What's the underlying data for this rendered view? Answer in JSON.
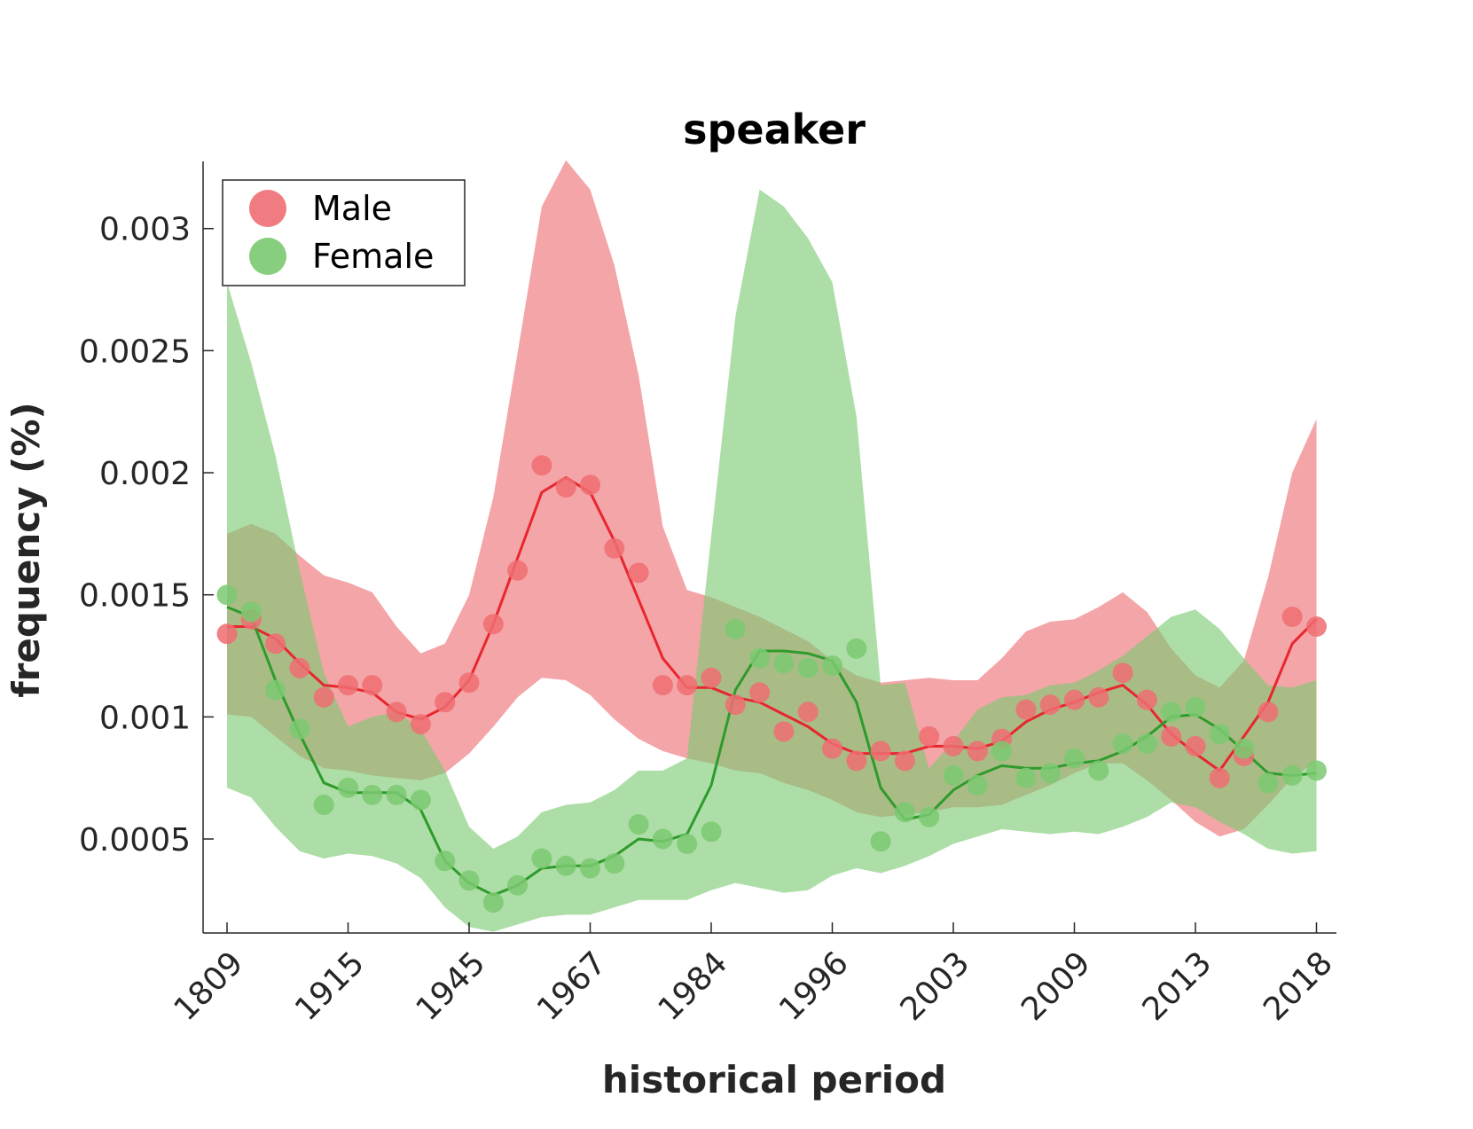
{
  "chart_data": {
    "type": "line",
    "title": "speaker",
    "xlabel": "historical period",
    "ylabel": "frequency (%)",
    "xtick_labels": [
      "1809",
      "1915",
      "1945",
      "1967",
      "1984",
      "1996",
      "2003",
      "2009",
      "2013",
      "2018"
    ],
    "xtick_positions": [
      0,
      5,
      10,
      15,
      20,
      25,
      30,
      35,
      40,
      45
    ],
    "x_index_range": [
      -1,
      46
    ],
    "ylim": [
      0.000115,
      0.003275
    ],
    "yticks": [
      0.0005,
      0.001,
      0.0015,
      0.002,
      0.0025,
      0.003
    ],
    "ytick_labels": [
      "0.0005",
      "0.001",
      "0.0015",
      "0.002",
      "0.0025",
      "0.003"
    ],
    "grid": false,
    "legend_position": "top-left",
    "series": [
      {
        "name": "Male",
        "color": "#e8262e",
        "band_color": "#ee6d72",
        "points": [
          0.00134,
          0.0014,
          0.0013,
          0.0012,
          0.00108,
          0.00113,
          0.00113,
          0.00102,
          0.00097,
          0.00106,
          0.00114,
          0.00138,
          0.0016,
          0.00203,
          0.00194,
          0.00195,
          0.00169,
          0.00159,
          0.00113,
          0.00113,
          0.00116,
          0.00105,
          0.0011,
          0.00094,
          0.00102,
          0.00087,
          0.00082,
          0.00086,
          0.00082,
          0.00092,
          0.00088,
          0.00086,
          0.00091,
          0.00103,
          0.00105,
          0.00107,
          0.00108,
          0.00118,
          0.00107,
          0.00092,
          0.00088,
          0.00075,
          0.00084,
          0.00102,
          0.00141,
          0.00137
        ],
        "line": [
          0.00137,
          0.00137,
          0.00132,
          0.00122,
          0.00113,
          0.00112,
          0.0011,
          0.00102,
          0.00099,
          0.00104,
          0.00115,
          0.00138,
          0.00165,
          0.00192,
          0.00198,
          0.00192,
          0.00172,
          0.00148,
          0.00124,
          0.00112,
          0.00112,
          0.00108,
          0.00106,
          0.00101,
          0.00096,
          0.00089,
          0.00085,
          0.00085,
          0.00085,
          0.00088,
          0.00088,
          0.00087,
          0.0009,
          0.00098,
          0.00103,
          0.00106,
          0.0011,
          0.00113,
          0.00105,
          0.00093,
          0.00085,
          0.00078,
          0.00092,
          0.00106,
          0.0013,
          0.0014
        ],
        "band_upper": [
          0.00175,
          0.00179,
          0.00175,
          0.00166,
          0.00158,
          0.00155,
          0.00151,
          0.00137,
          0.00126,
          0.0013,
          0.0015,
          0.0019,
          0.00249,
          0.00309,
          0.00328,
          0.00316,
          0.00285,
          0.0024,
          0.00178,
          0.00152,
          0.00149,
          0.00145,
          0.00141,
          0.00136,
          0.00131,
          0.00123,
          0.00117,
          0.00114,
          0.00115,
          0.00116,
          0.00115,
          0.00115,
          0.00124,
          0.00135,
          0.00139,
          0.0014,
          0.00145,
          0.00151,
          0.00143,
          0.00128,
          0.00117,
          0.00112,
          0.00123,
          0.00157,
          0.002,
          0.00222
        ],
        "band_lower": [
          0.00101,
          0.001,
          0.00092,
          0.00084,
          0.00079,
          0.00078,
          0.00076,
          0.00075,
          0.00074,
          0.00077,
          0.00085,
          0.00096,
          0.00108,
          0.00116,
          0.00115,
          0.00109,
          0.00099,
          0.00091,
          0.00086,
          0.00083,
          0.00081,
          0.00078,
          0.00077,
          0.00073,
          0.0007,
          0.00066,
          0.00061,
          0.00059,
          0.0006,
          0.00061,
          0.00063,
          0.00063,
          0.00064,
          0.00068,
          0.00072,
          0.00077,
          0.00081,
          0.00081,
          0.00074,
          0.00066,
          0.00057,
          0.00051,
          0.00054,
          0.00064,
          0.00075,
          0.00082
        ]
      },
      {
        "name": "Female",
        "color": "#2e9b2b",
        "band_color": "#7bc971",
        "points": [
          0.0015,
          0.00143,
          0.00111,
          0.00095,
          0.00064,
          0.00071,
          0.00068,
          0.00068,
          0.00066,
          0.00041,
          0.00033,
          0.00024,
          0.00031,
          0.00042,
          0.00039,
          0.00038,
          0.0004,
          0.00056,
          0.0005,
          0.00048,
          0.00053,
          0.00136,
          0.00124,
          0.00122,
          0.0012,
          0.00121,
          0.00128,
          0.00049,
          0.00061,
          0.00059,
          0.00076,
          0.00072,
          0.00086,
          0.00075,
          0.00077,
          0.00083,
          0.00078,
          0.00089,
          0.00089,
          0.00102,
          0.00104,
          0.00093,
          0.00087,
          0.00073,
          0.00076,
          0.00078
        ],
        "line": [
          0.00145,
          0.00141,
          0.00115,
          0.00093,
          0.00073,
          0.00069,
          0.00069,
          0.00069,
          0.00062,
          0.00041,
          0.00032,
          0.00027,
          0.00031,
          0.00038,
          0.00039,
          0.00039,
          0.00043,
          0.0005,
          0.00049,
          0.00052,
          0.00072,
          0.00111,
          0.00127,
          0.00127,
          0.00126,
          0.00123,
          0.00106,
          0.00071,
          0.00058,
          0.0006,
          0.0007,
          0.00076,
          0.0008,
          0.00079,
          0.00079,
          0.00081,
          0.00082,
          0.00086,
          0.00092,
          0.001,
          0.00101,
          0.00095,
          0.00086,
          0.00077,
          0.00076,
          0.00077
        ],
        "band_upper": [
          0.00278,
          0.00245,
          0.00207,
          0.0016,
          0.00118,
          0.00096,
          0.001,
          0.00102,
          0.00095,
          0.00078,
          0.00055,
          0.00046,
          0.00051,
          0.00061,
          0.00064,
          0.00065,
          0.0007,
          0.00078,
          0.00078,
          0.00083,
          0.00174,
          0.00264,
          0.00316,
          0.00309,
          0.00296,
          0.00278,
          0.00223,
          0.00113,
          0.00114,
          0.00079,
          0.0009,
          0.00103,
          0.00108,
          0.00109,
          0.00113,
          0.00114,
          0.00119,
          0.00125,
          0.00133,
          0.00141,
          0.00144,
          0.00136,
          0.00124,
          0.00113,
          0.00112,
          0.00115
        ],
        "band_lower": [
          0.00071,
          0.00067,
          0.00055,
          0.00045,
          0.00042,
          0.00044,
          0.00043,
          0.0004,
          0.00034,
          0.00022,
          0.00014,
          0.00012,
          0.00015,
          0.00018,
          0.00019,
          0.00019,
          0.00022,
          0.00025,
          0.00025,
          0.00025,
          0.00029,
          0.00032,
          0.0003,
          0.00028,
          0.00029,
          0.00035,
          0.00038,
          0.00036,
          0.00039,
          0.00043,
          0.00048,
          0.00051,
          0.00054,
          0.00053,
          0.00052,
          0.00053,
          0.00052,
          0.00055,
          0.00059,
          0.00065,
          0.00063,
          0.00057,
          0.00052,
          0.00046,
          0.00044,
          0.00045
        ]
      }
    ]
  }
}
